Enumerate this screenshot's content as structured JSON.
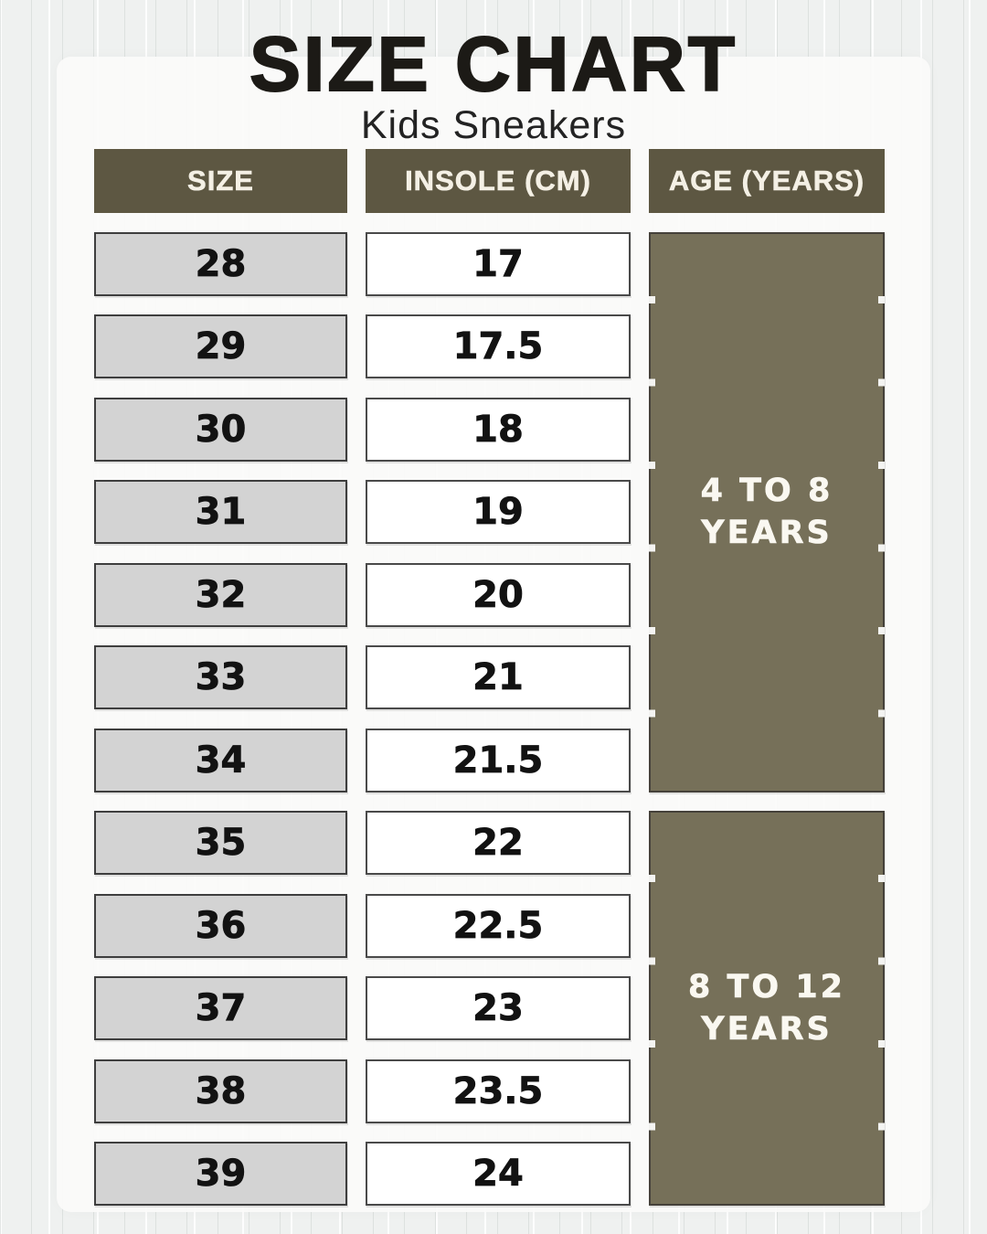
{
  "header": {
    "title": "SIZE CHART",
    "subtitle": "Kids Sneakers"
  },
  "chart_data": {
    "type": "table",
    "title": "SIZE CHART",
    "subtitle": "Kids Sneakers",
    "columns": [
      "SIZE",
      "INSOLE (CM)",
      "AGE (YEARS)"
    ],
    "rows": [
      {
        "size": "28",
        "insole_cm": "17"
      },
      {
        "size": "29",
        "insole_cm": "17.5"
      },
      {
        "size": "30",
        "insole_cm": "18"
      },
      {
        "size": "31",
        "insole_cm": "19"
      },
      {
        "size": "32",
        "insole_cm": "20"
      },
      {
        "size": "33",
        "insole_cm": "21"
      },
      {
        "size": "34",
        "insole_cm": "21.5"
      },
      {
        "size": "35",
        "insole_cm": "22"
      },
      {
        "size": "36",
        "insole_cm": "22.5"
      },
      {
        "size": "37",
        "insole_cm": "23"
      },
      {
        "size": "38",
        "insole_cm": "23.5"
      },
      {
        "size": "39",
        "insole_cm": "24"
      }
    ],
    "age_groups": [
      {
        "label_line1": "4 TO 8",
        "label_line2": "YEARS",
        "sizes": "28-34",
        "row_index": 0,
        "row_span": 7
      },
      {
        "label_line1": "8 TO 12",
        "label_line2": "YEARS",
        "sizes": "35-39",
        "row_index": 7,
        "row_span": 5
      }
    ],
    "layout_hints": {
      "merged_age_column": true,
      "grid": "3 columns x 13 rows"
    }
  },
  "colors": {
    "page_bg": "#eff1f0",
    "panel_bg": "#fbfbfa",
    "header_bg": "#5d5742",
    "header_text": "#f4f0e5",
    "size_cell_bg": "#d3d3d3",
    "insole_cell_bg": "#ffffff",
    "cell_border": "#424242",
    "age_bg": "#767059",
    "age_border": "#45413a",
    "age_text": "#faf8f1",
    "title_text": "#1c1a16",
    "subtitle_text": "#232323",
    "number_text": "#121212"
  }
}
